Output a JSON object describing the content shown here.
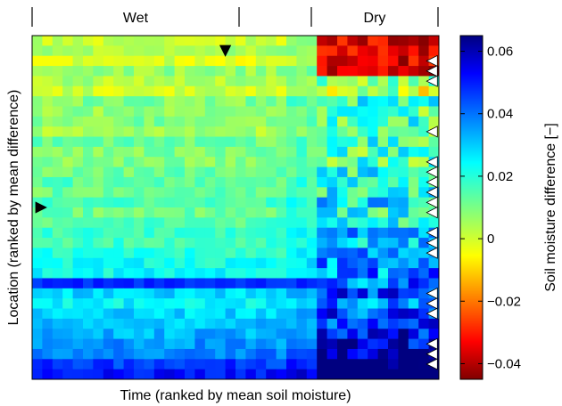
{
  "chart_data": {
    "type": "heatmap",
    "title": "",
    "xlabel": "Time (ranked by mean soil moisture)",
    "ylabel": "Location (ranked by mean difference)",
    "top_labels": [
      "Wet",
      "Dry"
    ],
    "colorbar": {
      "label": "Soil moisture difference [−]",
      "range": [
        -0.045,
        0.065
      ],
      "ticks": [
        0.06,
        0.04,
        0.02,
        0,
        -0.02,
        -0.04
      ],
      "tick_labels": [
        "0.06",
        "0.04",
        "0.02",
        "0",
        "−0.02",
        "−0.04"
      ],
      "colormap": "jet"
    },
    "grid": {
      "rows": 34,
      "cols": 40
    },
    "markers": {
      "down_triangle": {
        "row": 1,
        "col": 18.5,
        "color": "#000000"
      },
      "right_triangle": {
        "row": 16.5,
        "col": -0.5,
        "color": "#000000"
      },
      "left_triangles": {
        "col": 39,
        "rows": [
          2,
          3,
          4,
          9,
          12,
          13,
          14,
          15,
          16,
          17,
          19,
          20,
          21,
          25,
          26,
          27,
          30,
          31,
          32
        ],
        "color": "#ffffff"
      }
    }
  }
}
